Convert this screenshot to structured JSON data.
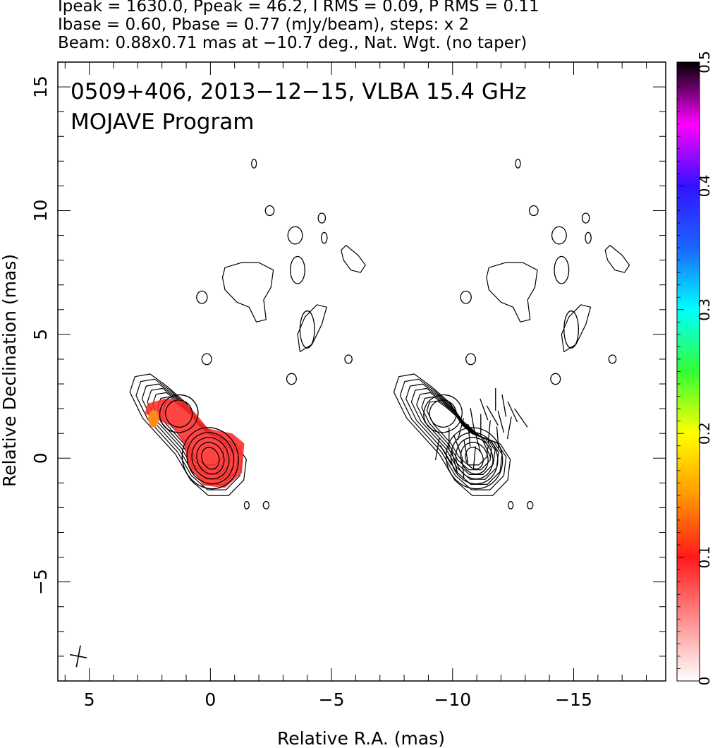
{
  "header": {
    "line1": "Ipeak = 1630.0, Ppeak = 46.2, I RMS = 0.09, P RMS = 0.11",
    "line2": "Ibase = 0.60, Pbase = 0.77 (mJy/beam), steps: x 2",
    "line3": "Beam: 0.88x0.71 mas at −10.7 deg., Nat. Wgt. (no taper)"
  },
  "annotation": {
    "line1": "0509+406, 2013−12−15, VLBA 15.4 GHz",
    "line2": "MOJAVE Program"
  },
  "colors": {
    "contour": "#000000",
    "polarized_flux": "#ff2a2a",
    "polarized_flux_edge": "#ff8c1a",
    "frame": "#000000"
  },
  "chart_data": {
    "type": "heatmap",
    "description_panels": [
      "total intensity contours with fractional polarization colour",
      "total intensity contours with EVPA ticks"
    ],
    "xlabel": "Relative R.A. (mas)",
    "ylabel": "Relative Declination (mas)",
    "xlim": [
      6.3,
      -18.8
    ],
    "ylim": [
      -9.0,
      16.0
    ],
    "x_ticks": [
      5,
      0,
      -5,
      -10,
      -15
    ],
    "x_tick_labels": [
      "5",
      "0",
      "−5",
      "−10",
      "−15"
    ],
    "y_ticks": [
      15,
      10,
      5,
      0,
      -5
    ],
    "y_tick_labels": [
      "15",
      "10",
      "5",
      "0",
      "−5"
    ],
    "colorbar": {
      "range": [
        0,
        0.5
      ],
      "ticks": [
        0,
        0.1,
        0.2,
        0.3,
        0.4,
        0.5
      ],
      "tick_labels": [
        "0",
        "0.1",
        "0.2",
        "0.3",
        "0.4",
        "0.5"
      ],
      "stops": [
        {
          "v": 0.0,
          "color": "#ffffff"
        },
        {
          "v": 0.1,
          "color": "#ff1a1a"
        },
        {
          "v": 0.15,
          "color": "#ff9900"
        },
        {
          "v": 0.2,
          "color": "#ffff00"
        },
        {
          "v": 0.25,
          "color": "#33ff33"
        },
        {
          "v": 0.3,
          "color": "#00ffff"
        },
        {
          "v": 0.35,
          "color": "#1a66ff"
        },
        {
          "v": 0.4,
          "color": "#3311ff"
        },
        {
          "v": 0.45,
          "color": "#ff00ff"
        },
        {
          "v": 0.5,
          "color": "#000000"
        }
      ]
    },
    "panel_offset_ra": -10.9,
    "core": {
      "ra": 0.0,
      "dec": 0.0
    },
    "jet_knot": {
      "ra": 1.3,
      "dec": 1.8
    },
    "core_contours": [
      {
        "rx": 0.35,
        "ry": 0.45
      },
      {
        "rx": 0.55,
        "ry": 0.65
      },
      {
        "rx": 0.75,
        "ry": 0.85
      },
      {
        "rx": 0.95,
        "ry": 1.05
      },
      {
        "rx": 1.15,
        "ry": 1.25
      }
    ],
    "knot_contours": [
      {
        "rx": 0.55,
        "ry": 0.55
      },
      {
        "rx": 0.8,
        "ry": 0.75
      }
    ],
    "envelope_contours": [
      {
        "scale": 1.0
      },
      {
        "scale": 1.14
      },
      {
        "scale": 1.28
      },
      {
        "scale": 1.42
      },
      {
        "scale": 1.57
      },
      {
        "scale": 1.73
      },
      {
        "scale": 1.9
      }
    ],
    "noise_contours": [
      {
        "ra": -3.5,
        "dec": 9.0,
        "rx": 0.3,
        "ry": 0.35
      },
      {
        "ra": -4.6,
        "dec": 9.7,
        "rx": 0.15,
        "ry": 0.2
      },
      {
        "ra": -4.7,
        "dec": 8.9,
        "rx": 0.12,
        "ry": 0.22
      },
      {
        "ra": -2.45,
        "dec": 10.0,
        "rx": 0.18,
        "ry": 0.2
      },
      {
        "ra": -1.8,
        "dec": 11.9,
        "rx": 0.1,
        "ry": 0.18
      },
      {
        "ra": -3.6,
        "dec": 7.6,
        "rx": 0.3,
        "ry": 0.55
      },
      {
        "ra": -4.0,
        "dec": 5.2,
        "rx": 0.3,
        "ry": 0.75
      },
      {
        "ra": -3.35,
        "dec": 3.2,
        "rx": 0.2,
        "ry": 0.22
      },
      {
        "ra": -5.7,
        "dec": 4.0,
        "rx": 0.15,
        "ry": 0.17
      },
      {
        "ra": 0.15,
        "dec": 4.0,
        "rx": 0.2,
        "ry": 0.22
      },
      {
        "ra": 0.35,
        "dec": 6.5,
        "rx": 0.22,
        "ry": 0.25
      },
      {
        "ra": -2.3,
        "dec": -1.9,
        "rx": 0.12,
        "ry": 0.15
      },
      {
        "ra": -1.5,
        "dec": -1.9,
        "rx": 0.1,
        "ry": 0.15
      }
    ],
    "irregular_contours": [
      {
        "points": [
          [
            -0.6,
            7.7
          ],
          [
            -1.3,
            7.9
          ],
          [
            -2.0,
            7.9
          ],
          [
            -2.6,
            7.6
          ],
          [
            -2.5,
            6.9
          ],
          [
            -2.2,
            6.4
          ],
          [
            -2.3,
            5.6
          ],
          [
            -1.9,
            5.5
          ],
          [
            -1.6,
            6.1
          ],
          [
            -1.1,
            6.3
          ],
          [
            -0.6,
            6.8
          ],
          [
            -0.5,
            7.3
          ]
        ]
      },
      {
        "points": [
          [
            -5.6,
            8.6
          ],
          [
            -6.1,
            8.2
          ],
          [
            -6.4,
            7.8
          ],
          [
            -6.2,
            7.5
          ],
          [
            -5.8,
            7.6
          ],
          [
            -5.5,
            8.0
          ],
          [
            -5.4,
            8.4
          ]
        ]
      },
      {
        "points": [
          [
            -4.4,
            6.2
          ],
          [
            -4.8,
            6.1
          ],
          [
            -4.6,
            5.4
          ],
          [
            -4.2,
            4.6
          ],
          [
            -3.7,
            4.3
          ],
          [
            -3.6,
            5.0
          ],
          [
            -3.9,
            5.7
          ]
        ]
      }
    ],
    "polarized_region": [
      [
        -1.9,
        2.4
      ],
      [
        -1.2,
        2.4
      ],
      [
        -0.6,
        1.8
      ],
      [
        -0.1,
        1.2
      ],
      [
        0.9,
        1.0
      ],
      [
        1.4,
        0.6
      ],
      [
        1.3,
        -0.6
      ],
      [
        0.6,
        -1.2
      ],
      [
        -0.3,
        -1.1
      ],
      [
        -0.9,
        -0.3
      ],
      [
        -1.1,
        0.6
      ],
      [
        -1.6,
        1.3
      ],
      [
        -2.3,
        1.6
      ],
      [
        -2.7,
        1.8
      ],
      [
        -2.6,
        2.2
      ]
    ],
    "evpa_ticks_deg": [
      35,
      25,
      10,
      0,
      -10,
      15,
      30,
      20,
      5,
      -5,
      0,
      10,
      25,
      15,
      5,
      -15,
      -5,
      10,
      20,
      0,
      5,
      15,
      30,
      -10
    ],
    "beam": {
      "major": 0.88,
      "minor": 0.71,
      "pa_deg": -10.7
    }
  }
}
